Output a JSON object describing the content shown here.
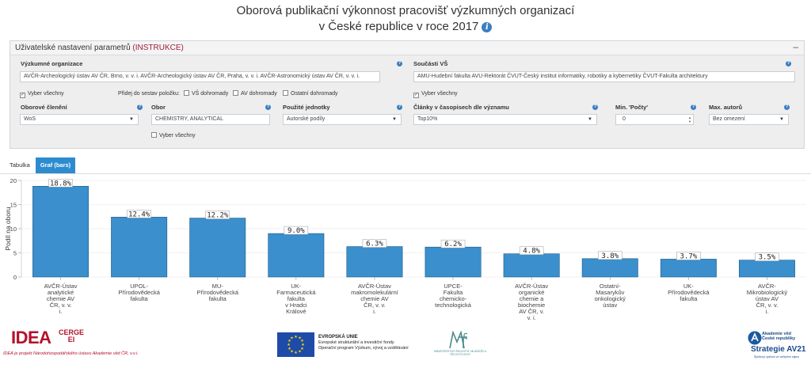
{
  "title": {
    "line1": "Oborová publikační výkonnost pracovišť výzkumných organizací",
    "line2": "v České republice v roce 2017",
    "info_icon": "info-icon"
  },
  "panel": {
    "heading": "Uživatelské nastavení parametrů",
    "instructions_link": "(INSTRUKCE)",
    "collapse_symbol": "–"
  },
  "filters": {
    "research_org": {
      "label": "Výzkumné organizace",
      "value": "AVČR-Archeologický ústav AV ČR, Brno, v. v. i.  AVČR-Archeologický ústav AV ČR, Praha, v. v. i.  AVČR-Astronomický ústav AV ČR, v. v. i.",
      "select_all": "Vyber všechny",
      "add_label": "Přidej do sestav položku:",
      "add_options": [
        "VŠ dohromady",
        "AV dohromady",
        "Ostatní dohromady"
      ]
    },
    "university_parts": {
      "label": "Součásti VŠ",
      "value": "AMU-Hudební fakulta  AVU-Rektorát  ČVUT-Český institut informatiky, robotiky a kybernetiky  ČVUT-Fakulta architektury",
      "select_all": "Vyber všechny"
    },
    "field_division": {
      "label": "Oborové členění",
      "value": "WoS"
    },
    "field": {
      "label": "Obor",
      "value": "CHEMISTRY, ANALYTICAL",
      "select_all": "Vyber všechny"
    },
    "units_used": {
      "label": "Použité jednotky",
      "value": "Autorské podíly"
    },
    "articles_by_importance": {
      "label": "Články v časopisech dle významu",
      "value": "Top10%"
    },
    "min_count": {
      "label": "Min. 'Počty'",
      "value": "0"
    },
    "max_authors": {
      "label": "Max. autorů",
      "value": "Bez omezení"
    }
  },
  "tabs": [
    {
      "label": "Tabulka",
      "active": false
    },
    {
      "label": "Graf (bars)",
      "active": true
    }
  ],
  "chart_data": {
    "type": "bar",
    "ylabel": "Podíl na oboru",
    "ylim": [
      0,
      20
    ],
    "yticks": [
      0,
      5,
      10,
      15,
      20
    ],
    "bar_color": "#3a8fcc",
    "categories": [
      [
        "AVČR-Ústav",
        "analytické",
        "chemie AV",
        "ČR, v. v.",
        "i."
      ],
      [
        "UPOL-",
        "Přírodovědecká",
        "fakulta"
      ],
      [
        "MU-",
        "Přírodovědecká",
        "fakulta"
      ],
      [
        "UK-",
        "Farmaceutická",
        "fakulta",
        "v Hradci",
        "Králové"
      ],
      [
        "AVČR-Ústav",
        "makromolekulární",
        "chemie AV",
        "ČR, v. v.",
        "i."
      ],
      [
        "UPCE-",
        "Fakulta",
        "chemicko-",
        "technologická"
      ],
      [
        "AVČR-Ústav",
        "organické",
        "chemie a",
        "biochemie",
        "AV ČR, v.",
        "v. i."
      ],
      [
        "Ostatní-",
        "Masarykův",
        "onkologický",
        "ústav"
      ],
      [
        "UK-",
        "Přírodovědecká",
        "fakulta"
      ],
      [
        "AVČR-",
        "Mikrobiologický",
        "ústav AV",
        "ČR, v. v.",
        "i."
      ]
    ],
    "values": [
      18.8,
      12.4,
      12.2,
      9.0,
      6.3,
      6.2,
      4.8,
      3.8,
      3.7,
      3.5
    ],
    "value_labels": [
      "18.8%",
      "12.4%",
      "12.2%",
      "9.0%",
      "6.3%",
      "6.2%",
      "4.8%",
      "3.8%",
      "3.7%",
      "3.5%"
    ]
  },
  "footer": {
    "idea_word": "IDEA",
    "cerge_line1": "CERGE",
    "cerge_line2": "EI",
    "idea_tagline": "IDEA je projekt Národohospodářského ústavu Akademie věd ČR, v.v.i.",
    "eu_title": "EVROPSKÁ UNIE",
    "eu_line2": "Evropské strukturální a investiční fondy",
    "eu_line3": "Operační program Výzkum, vývoj a vzdělávání",
    "msmt_text": "MINISTERSTVO ŠKOLSTVÍ, MLÁDEŽE A TĚLOVÝCHOVY",
    "av_line1": "Akademie věd",
    "av_line2": "České republiky",
    "av_strategy": "Strategie AV21",
    "av_sub": "Špičkový výzkum ve veřejném zájmu"
  }
}
